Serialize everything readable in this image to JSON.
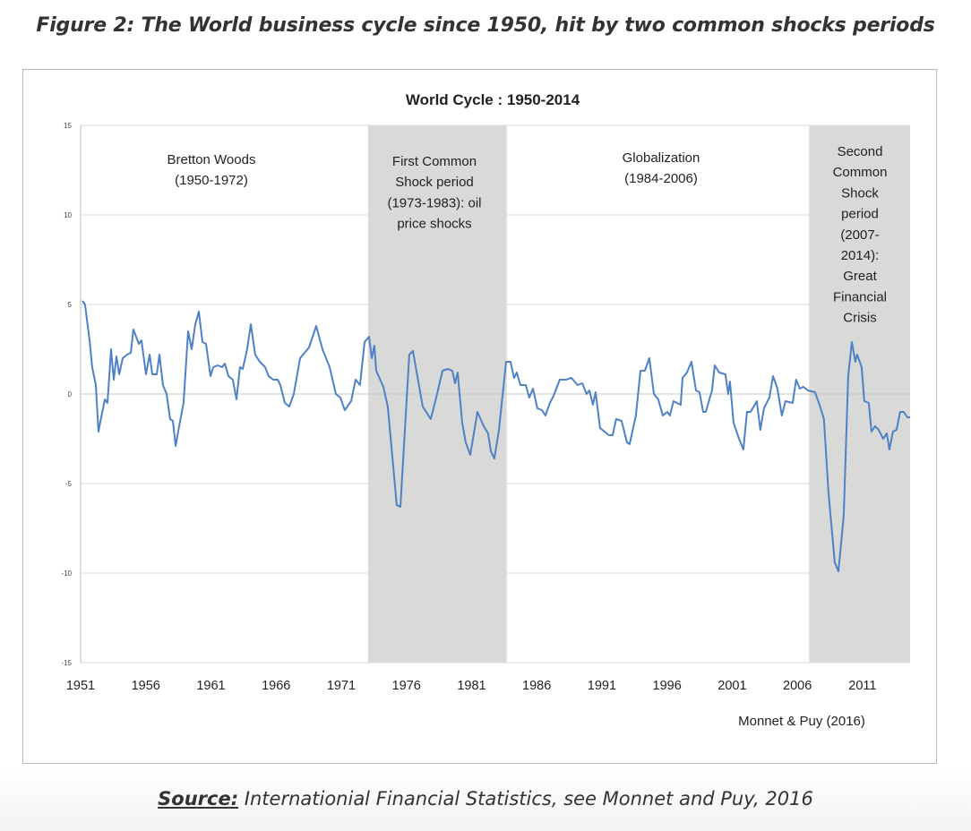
{
  "figure_title": "Figure 2: The World business cycle since 1950, hit by two common shocks periods",
  "source": {
    "label": "Source:",
    "text": " Internationial Financial Statistics, see Monnet and Puy, 2016"
  },
  "colors": {
    "line": "#4f81c7",
    "shade": "#d9d9d7",
    "grid": "#d9d9d9"
  },
  "chart_data": {
    "type": "line",
    "title": "World Cycle : 1950-2014",
    "credit": "Monnet & Puy (2016)",
    "xlim": [
      1951,
      2014.65
    ],
    "ylim": [
      -15,
      15
    ],
    "grid": true,
    "x_ticks": [
      "1951",
      "1956",
      "1961",
      "1966",
      "1971",
      "1976",
      "1981",
      "1986",
      "1991",
      "1996",
      "2001",
      "2006",
      "2011"
    ],
    "y_ticks": [
      "15",
      "10",
      "5",
      "0",
      "-5",
      "-10",
      "-15"
    ],
    "shaded_periods": [
      {
        "start": 1973.06,
        "end": 1983.7,
        "label_lines": [
          "First Common",
          "Shock period",
          "(1973-1983): oil",
          "price shocks"
        ]
      },
      {
        "start": 2006.9,
        "end": 2014.65,
        "label_lines": [
          "Second",
          "Common",
          "Shock",
          "period",
          "(2007-",
          "2014):",
          "Great",
          "Financial",
          "Crisis"
        ]
      }
    ],
    "period_labels": [
      {
        "label_lines": [
          "Bretton Woods",
          "(1950-1972)"
        ]
      },
      {
        "label_lines": [
          "Globalization",
          "(1984-2006)"
        ]
      }
    ],
    "series": [
      {
        "x": [
          1951.14,
          1951.34,
          1951.69,
          1951.89,
          1952.17,
          1952.37,
          1952.58,
          1952.86,
          1953.06,
          1953.34,
          1953.54,
          1953.75,
          1953.96,
          1954.23,
          1954.57,
          1954.85,
          1955.05,
          1955.47,
          1955.67,
          1956.02,
          1956.29,
          1956.5,
          1956.84,
          1957.05,
          1957.32,
          1957.6,
          1957.87,
          1958.08,
          1958.29,
          1958.56,
          1958.9,
          1959.25,
          1959.52,
          1959.8,
          1960.07,
          1960.35,
          1960.62,
          1960.97,
          1961.17,
          1961.52,
          1961.86,
          1962.07,
          1962.34,
          1962.68,
          1962.96,
          1963.23,
          1963.44,
          1963.78,
          1964.06,
          1964.4,
          1964.75,
          1965.16,
          1965.43,
          1965.78,
          1966.12,
          1966.33,
          1966.67,
          1967.01,
          1967.36,
          1967.84,
          1968.53,
          1969.08,
          1969.56,
          1970.11,
          1970.59,
          1970.93,
          1971.27,
          1971.76,
          1972.1,
          1972.44,
          1972.79,
          1973.13,
          1973.34,
          1973.54,
          1973.68,
          1974.23,
          1974.57,
          1975.26,
          1975.54,
          1976.22,
          1976.5,
          1977.25,
          1977.87,
          1978.29,
          1978.77,
          1979.18,
          1979.52,
          1979.73,
          1979.93,
          1980.28,
          1980.55,
          1980.9,
          1981.45,
          1981.93,
          1982.27,
          1982.48,
          1982.75,
          1983.1,
          1983.65,
          1983.99,
          1984.26,
          1984.47,
          1984.75,
          1985.16,
          1985.43,
          1985.71,
          1986.05,
          1986.4,
          1986.67,
          1987.01,
          1987.29,
          1987.77,
          1988.25,
          1988.66,
          1989.14,
          1989.49,
          1989.83,
          1990.04,
          1990.31,
          1990.52,
          1990.86,
          1991.55,
          1991.82,
          1992.1,
          1992.51,
          1992.92,
          1993.13,
          1993.61,
          1993.96,
          1994.3,
          1994.64,
          1994.99,
          1995.33,
          1995.67,
          1996.02,
          1996.22,
          1996.5,
          1997.05,
          1997.19,
          1997.53,
          1997.87,
          1998.22,
          1998.49,
          1998.77,
          1998.97,
          1999.45,
          1999.66,
          2000.0,
          2000.48,
          2000.69,
          2000.83,
          2001.1,
          2001.52,
          2001.86,
          2002.13,
          2002.41,
          2002.89,
          2003.16,
          2003.44,
          2003.85,
          2004.13,
          2004.47,
          2004.81,
          2005.09,
          2005.64,
          2005.91,
          2006.19,
          2006.46,
          2006.81,
          2007.36,
          2007.7,
          2008.04,
          2008.39,
          2008.87,
          2009.15,
          2009.56,
          2009.9,
          2010.18,
          2010.45,
          2010.59,
          2010.93,
          2011.14,
          2011.48,
          2011.69,
          2011.96,
          2012.24,
          2012.58,
          2012.86,
          2013.06,
          2013.34,
          2013.61,
          2013.89,
          2014.16,
          2014.44,
          2014.65
        ],
        "y": [
          5.2,
          5.0,
          3.0,
          1.5,
          0.5,
          -2.1,
          -1.3,
          -0.3,
          -0.5,
          2.5,
          0.8,
          2.1,
          1.1,
          2.0,
          2.2,
          2.3,
          3.6,
          2.8,
          3.0,
          1.1,
          2.2,
          1.1,
          1.1,
          2.2,
          0.5,
          0.0,
          -1.4,
          -1.5,
          -2.9,
          -1.8,
          -0.5,
          3.5,
          2.5,
          3.9,
          4.6,
          2.9,
          2.8,
          1.0,
          1.5,
          1.6,
          1.5,
          1.7,
          1.0,
          0.8,
          -0.3,
          1.5,
          1.4,
          2.5,
          3.9,
          2.2,
          1.8,
          1.5,
          1.0,
          0.8,
          0.8,
          0.5,
          -0.5,
          -0.7,
          0.0,
          2.0,
          2.6,
          3.8,
          2.5,
          1.5,
          0.0,
          -0.2,
          -0.9,
          -0.4,
          0.8,
          0.5,
          2.9,
          3.2,
          2.0,
          2.7,
          1.3,
          0.4,
          -0.7,
          -6.2,
          -6.3,
          2.2,
          2.4,
          -0.7,
          -1.4,
          -0.2,
          1.3,
          1.4,
          1.3,
          0.6,
          1.2,
          -1.6,
          -2.7,
          -3.4,
          -1.0,
          -1.8,
          -2.2,
          -3.2,
          -3.6,
          -2.0,
          1.8,
          1.8,
          0.9,
          1.2,
          0.5,
          0.5,
          -0.2,
          0.3,
          -0.8,
          -0.9,
          -1.2,
          -0.5,
          -0.1,
          0.8,
          0.8,
          0.9,
          0.5,
          0.6,
          0.0,
          0.2,
          -0.6,
          0.1,
          -1.9,
          -2.3,
          -2.3,
          -1.4,
          -1.5,
          -2.7,
          -2.8,
          -1.2,
          1.3,
          1.3,
          2.0,
          0.0,
          -0.3,
          -1.2,
          -1.0,
          -1.2,
          -0.4,
          -0.6,
          0.9,
          1.2,
          1.8,
          0.2,
          0.1,
          -1.0,
          -1.0,
          0.2,
          1.6,
          1.2,
          1.1,
          0.0,
          0.7,
          -1.6,
          -2.5,
          -3.1,
          -1.0,
          -1.0,
          -0.4,
          -2.0,
          -0.8,
          -0.2,
          1.0,
          0.3,
          -1.2,
          -0.4,
          -0.5,
          0.8,
          0.3,
          0.4,
          0.2,
          0.1,
          -0.6,
          -1.4,
          -5.5,
          -9.4,
          -9.9,
          -6.8,
          1.0,
          2.9,
          1.8,
          2.2,
          1.5,
          -0.4,
          -0.5,
          -2.1,
          -1.8,
          -2.0,
          -2.5,
          -2.2,
          -3.1,
          -2.1,
          -2.0,
          -1.0,
          -1.0,
          -1.3,
          -1.3
        ]
      }
    ]
  }
}
